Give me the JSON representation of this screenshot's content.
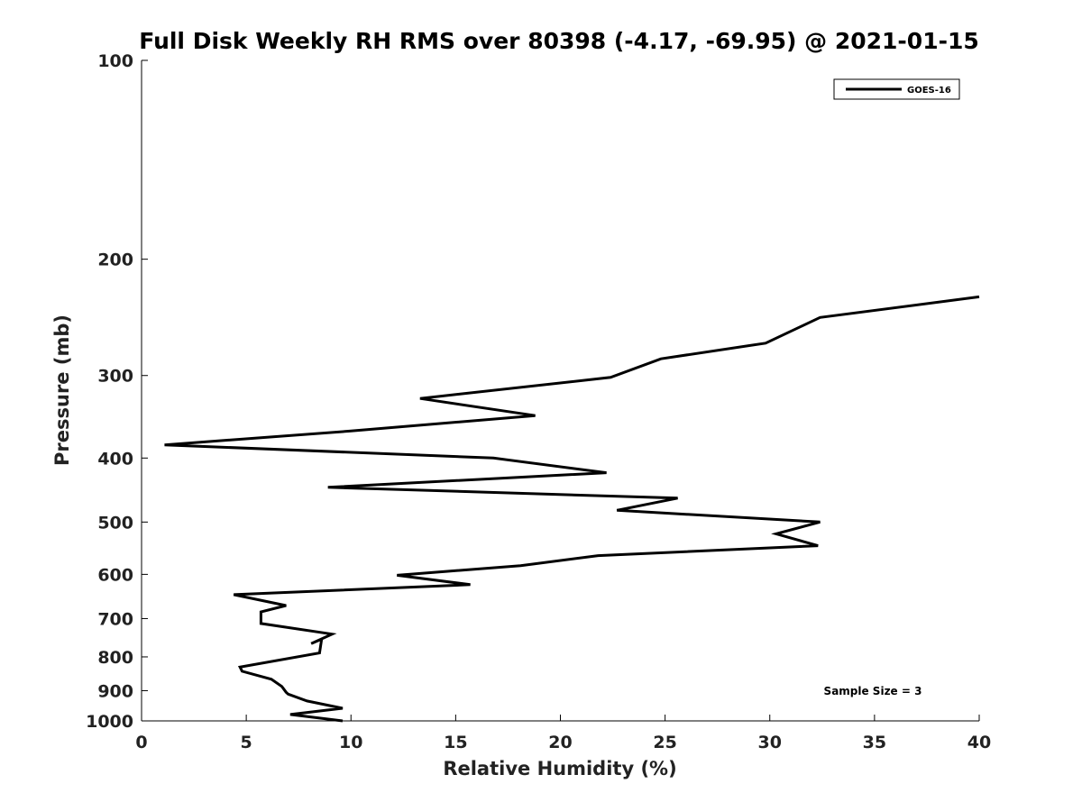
{
  "chart_data": {
    "type": "line",
    "title": "Full Disk Weekly RH RMS over 80398 (-4.17, -69.95) @ 2021-01-15",
    "xlabel": "Relative Humidity (%)",
    "ylabel": "Pressure (mb)",
    "xlim": [
      0,
      40
    ],
    "ylim": [
      100,
      1000
    ],
    "y_scale": "log",
    "y_inverted": true,
    "x_ticks": [
      "0",
      "5",
      "10",
      "15",
      "20",
      "25",
      "30",
      "35",
      "40"
    ],
    "y_ticks": [
      "100",
      "200",
      "300",
      "400",
      "500",
      "600",
      "700",
      "800",
      "900",
      "1000"
    ],
    "legend": {
      "position": "top-right",
      "entries": [
        "GOES-16"
      ]
    },
    "annotation": "Sample Size = 3",
    "series": [
      {
        "name": "GOES-16",
        "color": "#000000",
        "points": [
          [
            40.0,
            228
          ],
          [
            32.4,
            245
          ],
          [
            29.8,
            268
          ],
          [
            24.8,
            283
          ],
          [
            22.4,
            302
          ],
          [
            13.3,
            325
          ],
          [
            18.8,
            345
          ],
          [
            10.0,
            364
          ],
          [
            1.1,
            382
          ],
          [
            16.8,
            400
          ],
          [
            22.2,
            421
          ],
          [
            8.9,
            443
          ],
          [
            25.6,
            460
          ],
          [
            22.7,
            480
          ],
          [
            32.4,
            500
          ],
          [
            30.3,
            521
          ],
          [
            32.3,
            543
          ],
          [
            21.8,
            562
          ],
          [
            18.1,
            582
          ],
          [
            12.2,
            602
          ],
          [
            15.7,
            622
          ],
          [
            4.4,
            644
          ],
          [
            6.9,
            669
          ],
          [
            5.7,
            684
          ],
          [
            5.7,
            712
          ],
          [
            9.1,
            739
          ],
          [
            8.1,
            764
          ],
          [
            8.6,
            752
          ],
          [
            8.5,
            789
          ],
          [
            4.7,
            829
          ],
          [
            4.8,
            841
          ],
          [
            6.2,
            865
          ],
          [
            6.7,
            887
          ],
          [
            6.9,
            905
          ],
          [
            7.0,
            911
          ],
          [
            7.9,
            933
          ],
          [
            9.6,
            957
          ],
          [
            7.1,
            978
          ],
          [
            9.6,
            1000
          ]
        ]
      }
    ]
  }
}
